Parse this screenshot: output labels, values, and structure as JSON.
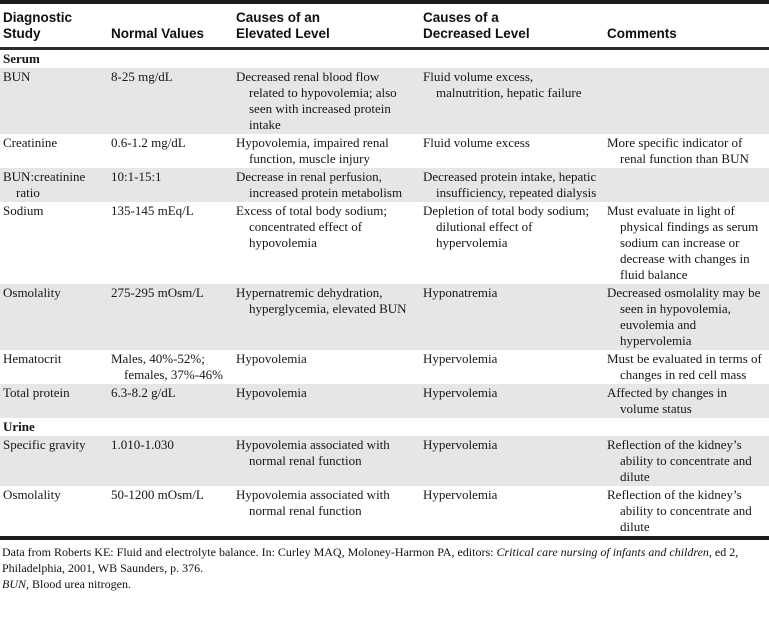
{
  "colors": {
    "shaded_row": "#e6e6e6",
    "rule": "#1c1c1c",
    "text": "#161616",
    "background": "#ffffff"
  },
  "table": {
    "headers": [
      {
        "lines": [
          "Diagnostic",
          "Study"
        ]
      },
      {
        "lines": [
          "Normal Values"
        ]
      },
      {
        "lines": [
          "Causes of an",
          "Elevated Level"
        ]
      },
      {
        "lines": [
          "Causes of a",
          "Decreased Level"
        ]
      },
      {
        "lines": [
          "Comments"
        ]
      }
    ],
    "rows": [
      {
        "type": "section",
        "label": "Serum"
      },
      {
        "type": "data",
        "shaded": true,
        "study": "BUN",
        "normal": "8-25 mg/dL",
        "elevated": "Decreased renal blood flow related to hypovolemia; also seen with increased protein intake",
        "decreased": "Fluid volume excess, malnutrition, hepatic failure",
        "comments": ""
      },
      {
        "type": "data",
        "shaded": false,
        "study": "Creatinine",
        "normal": "0.6-1.2 mg/dL",
        "elevated": "Hypovolemia, impaired renal function, muscle injury",
        "decreased": "Fluid volume excess",
        "comments": "More specific indicator of renal function than BUN"
      },
      {
        "type": "data",
        "shaded": true,
        "study": "BUN:creatinine ratio",
        "normal": "10:1-15:1",
        "elevated": "Decrease in renal perfusion, increased protein metabolism",
        "decreased": "Decreased protein intake, hepatic insufficiency, repeated dialysis",
        "comments": ""
      },
      {
        "type": "data",
        "shaded": false,
        "study": "Sodium",
        "normal": "135-145 mEq/L",
        "elevated": "Excess of total body sodium; concentrated effect of hypovolemia",
        "decreased": "Depletion of total body sodium; dilutional effect of hypervolemia",
        "comments": "Must evaluate in light of physical findings as serum sodium can increase or decrease with changes in fluid balance"
      },
      {
        "type": "data",
        "shaded": true,
        "study": "Osmolality",
        "normal": "275-295 mOsm/L",
        "elevated": "Hypernatremic dehydration, hyperglycemia, elevated BUN",
        "decreased": "Hyponatremia",
        "comments": "Decreased osmolality may be seen in hypovolemia, euvolemia and hypervolemia"
      },
      {
        "type": "data",
        "shaded": false,
        "study": "Hematocrit",
        "normal": "Males, 40%-52%; females, 37%-46%",
        "elevated": "Hypovolemia",
        "decreased": "Hypervolemia",
        "comments": "Must be evaluated in terms of changes in red cell mass"
      },
      {
        "type": "data",
        "shaded": true,
        "study": "Total protein",
        "normal": "6.3-8.2 g/dL",
        "elevated": "Hypovolemia",
        "decreased": "Hypervolemia",
        "comments": "Affected by changes in volume status"
      },
      {
        "type": "section",
        "label": "Urine"
      },
      {
        "type": "data",
        "shaded": true,
        "study": "Specific gravity",
        "normal": "1.010-1.030",
        "elevated": "Hypovolemia associated with normal renal function",
        "decreased": "Hypervolemia",
        "comments": "Reflection of the kidney’s ability to concentrate and dilute"
      },
      {
        "type": "data",
        "shaded": false,
        "study": "Osmolality",
        "normal": "50-1200 mOsm/L",
        "elevated": "Hypovolemia associated with normal renal function",
        "decreased": "Hypervolemia",
        "comments": "Reflection of the kidney’s ability to concentrate and dilute"
      }
    ]
  },
  "footer": {
    "source_pre": "Data from Roberts KE: Fluid and electrolyte balance. In: Curley MAQ, Moloney-Harmon PA, editors: ",
    "source_title": "Critical care nursing of infants and children",
    "source_post": ", ed 2, Philadelphia, 2001, WB Saunders, p. 376.",
    "abbrev_italic": "BUN",
    "abbrev_post": ", Blood urea nitrogen."
  }
}
